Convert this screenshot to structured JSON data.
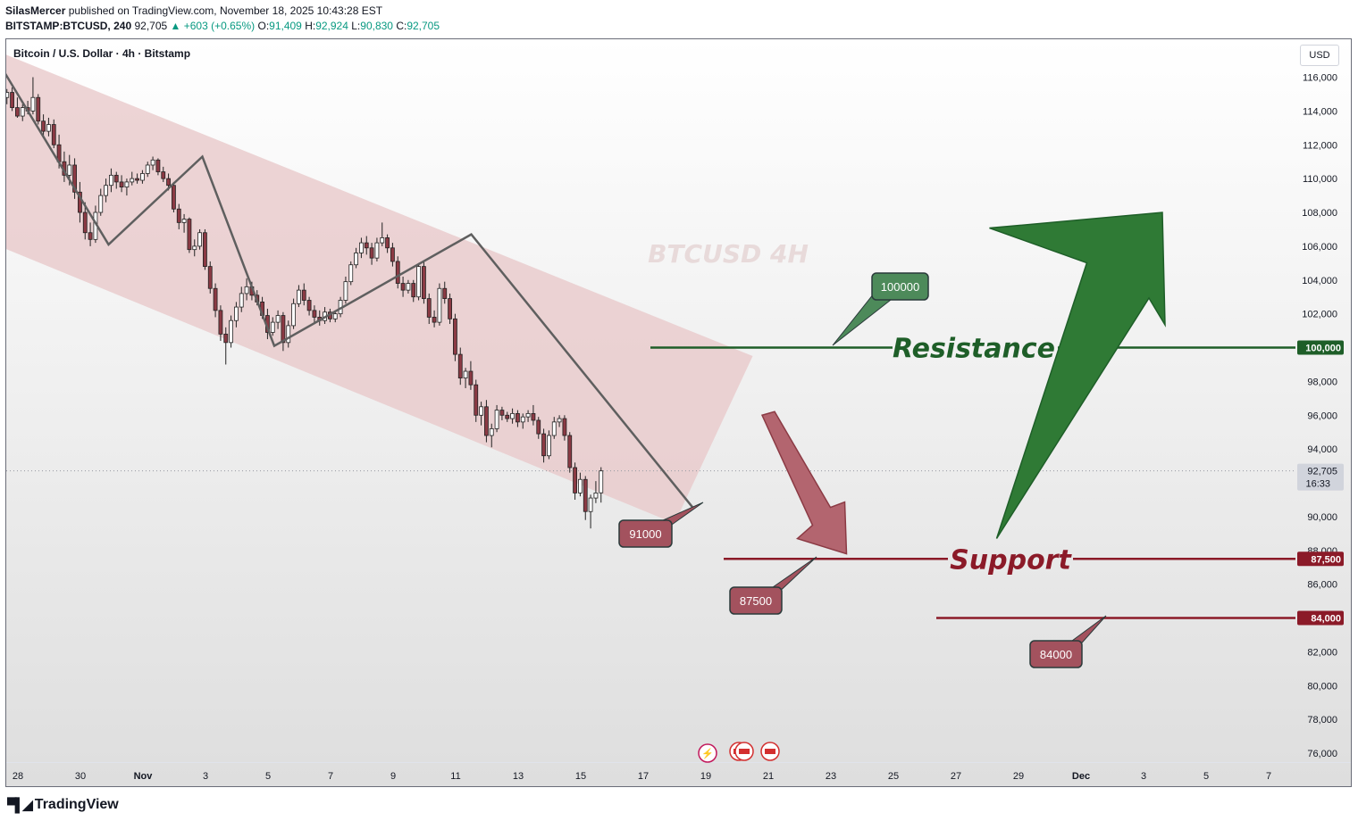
{
  "header": {
    "author": "SilasMercer",
    "published_text": "published on TradingView.com, November 18, 2025 10:43:28 EST",
    "symbol": "BITSTAMP:BTCUSD, 240",
    "last": "92,705",
    "change": "+603 (+0.65%)",
    "ohlc": [
      {
        "k": "O:",
        "v": "91,409"
      },
      {
        "k": "H:",
        "v": "92,924"
      },
      {
        "k": "L:",
        "v": "90,830"
      },
      {
        "k": "C:",
        "v": "92,705"
      }
    ]
  },
  "legend": "Bitcoin / U.S. Dollar · 4h · Bitstamp",
  "currency_button": "USD",
  "watermark": "BTCUSD 4H",
  "footer_brand": "TradingView",
  "colors": {
    "up": "#089981",
    "bull": "#ffffff",
    "bear": "#8b3a44",
    "channel": "#e8c9cb",
    "resistance": "#1e5e28",
    "support": "#8b1a28",
    "label_red": "#a3525e",
    "label_green": "#4d8a5a",
    "arrow_green": "#2f7a35",
    "arrow_red": "#b3656f",
    "zigzag": "#5f5f5f"
  },
  "chart_data": {
    "type": "candlestick",
    "timeframe": "4h",
    "y_axis": {
      "ticks": [
        "116,000",
        "114,000",
        "112,000",
        "110,000",
        "108,000",
        "106,000",
        "104,000",
        "102,000",
        "100,000",
        "98,000",
        "96,000",
        "94,000",
        "92,000",
        "90,000",
        "88,000",
        "86,000",
        "84,000",
        "82,000",
        "80,000",
        "78,000",
        "76,000"
      ],
      "tick_values": [
        116000,
        114000,
        112000,
        110000,
        108000,
        106000,
        104000,
        102000,
        100000,
        98000,
        96000,
        94000,
        92000,
        90000,
        88000,
        86000,
        84000,
        82000,
        80000,
        78000,
        76000
      ],
      "ylim": [
        74400,
        117600
      ]
    },
    "x_axis": {
      "ticks": [
        "28",
        "30",
        "Nov",
        "3",
        "5",
        "7",
        "9",
        "11",
        "13",
        "15",
        "17",
        "19",
        "21",
        "23",
        "25",
        "27",
        "29",
        "Dec",
        "3",
        "5",
        "7"
      ],
      "tick_days": [
        -4,
        -2,
        0,
        2,
        4,
        6,
        8,
        10,
        12,
        14,
        16,
        18,
        20,
        22,
        24,
        26,
        28,
        30,
        32,
        34,
        36
      ]
    },
    "last_price": {
      "label": "92,705",
      "value": 92705,
      "countdown": "16:33"
    },
    "levels": [
      {
        "name": "Resistance",
        "value": 100000,
        "axis_label": "100,000",
        "callout": "100000"
      },
      {
        "name": "Support",
        "value": 87500,
        "axis_label": "87,500",
        "callout": "87500"
      },
      {
        "name": "",
        "value": 84000,
        "axis_label": "84,000",
        "callout": "84000"
      }
    ],
    "callout_low": "91000",
    "swing_points": [
      {
        "day": -4.4,
        "price": 116200
      },
      {
        "day": -1.1,
        "price": 106100
      },
      {
        "day": 1.9,
        "price": 111300
      },
      {
        "day": 4.2,
        "price": 100100
      },
      {
        "day": 10.5,
        "price": 106700
      },
      {
        "day": 17.6,
        "price": 90500
      }
    ],
    "projection": [
      {
        "name": "down",
        "from_day": 19.8,
        "from_price": 96000,
        "to_day": 22.5,
        "to_price": 87800
      },
      {
        "name": "up",
        "from_day": 27.3,
        "from_price": 88700,
        "to_day": 32.6,
        "to_price": 108000
      }
    ],
    "candles": [
      {
        "o": 116000,
        "h": 116500,
        "l": 115000,
        "c": 115800
      },
      {
        "o": 115800,
        "h": 116200,
        "l": 115200,
        "c": 115400
      },
      {
        "o": 115400,
        "h": 115800,
        "l": 114600,
        "c": 114800
      },
      {
        "o": 114800,
        "h": 115300,
        "l": 114400,
        "c": 115100
      },
      {
        "o": 115100,
        "h": 115400,
        "l": 114000,
        "c": 114200
      },
      {
        "o": 114200,
        "h": 114800,
        "l": 113600,
        "c": 113700
      },
      {
        "o": 113700,
        "h": 114400,
        "l": 113400,
        "c": 114200
      },
      {
        "o": 114200,
        "h": 114600,
        "l": 113800,
        "c": 114000
      },
      {
        "o": 114000,
        "h": 116000,
        "l": 113800,
        "c": 114800
      },
      {
        "o": 114800,
        "h": 115000,
        "l": 113200,
        "c": 113400
      },
      {
        "o": 113400,
        "h": 113800,
        "l": 112400,
        "c": 112800
      },
      {
        "o": 112800,
        "h": 113600,
        "l": 112500,
        "c": 113200
      },
      {
        "o": 113200,
        "h": 113500,
        "l": 111800,
        "c": 112000
      },
      {
        "o": 112000,
        "h": 112600,
        "l": 110600,
        "c": 111000
      },
      {
        "o": 111000,
        "h": 111600,
        "l": 109800,
        "c": 110200
      },
      {
        "o": 110200,
        "h": 111400,
        "l": 109600,
        "c": 110800
      },
      {
        "o": 110800,
        "h": 111200,
        "l": 108800,
        "c": 109200
      },
      {
        "o": 109200,
        "h": 109800,
        "l": 107400,
        "c": 108000
      },
      {
        "o": 108000,
        "h": 108600,
        "l": 106400,
        "c": 106800
      },
      {
        "o": 106800,
        "h": 107400,
        "l": 106000,
        "c": 106400
      },
      {
        "o": 106400,
        "h": 108400,
        "l": 106200,
        "c": 108000
      },
      {
        "o": 108000,
        "h": 109400,
        "l": 107800,
        "c": 109000
      },
      {
        "o": 109000,
        "h": 110000,
        "l": 108600,
        "c": 109600
      },
      {
        "o": 109600,
        "h": 110600,
        "l": 109200,
        "c": 110200
      },
      {
        "o": 110200,
        "h": 110400,
        "l": 109400,
        "c": 109800
      },
      {
        "o": 109800,
        "h": 110200,
        "l": 109200,
        "c": 109500
      },
      {
        "o": 109500,
        "h": 110000,
        "l": 109000,
        "c": 109800
      },
      {
        "o": 109800,
        "h": 110400,
        "l": 109600,
        "c": 110000
      },
      {
        "o": 110000,
        "h": 110300,
        "l": 109700,
        "c": 109900
      },
      {
        "o": 109900,
        "h": 110500,
        "l": 109700,
        "c": 110300
      },
      {
        "o": 110300,
        "h": 111000,
        "l": 110100,
        "c": 110800
      },
      {
        "o": 110800,
        "h": 111300,
        "l": 110500,
        "c": 111100
      },
      {
        "o": 111100,
        "h": 111200,
        "l": 110200,
        "c": 110400
      },
      {
        "o": 110400,
        "h": 110700,
        "l": 109800,
        "c": 110000
      },
      {
        "o": 110000,
        "h": 110300,
        "l": 109300,
        "c": 109600
      },
      {
        "o": 109600,
        "h": 109800,
        "l": 108000,
        "c": 108200
      },
      {
        "o": 108200,
        "h": 108500,
        "l": 107000,
        "c": 107400
      },
      {
        "o": 107400,
        "h": 107900,
        "l": 106800,
        "c": 107600
      },
      {
        "o": 107600,
        "h": 107700,
        "l": 105600,
        "c": 105800
      },
      {
        "o": 105800,
        "h": 106400,
        "l": 105400,
        "c": 106000
      },
      {
        "o": 106000,
        "h": 107000,
        "l": 105800,
        "c": 106800
      },
      {
        "o": 106800,
        "h": 107000,
        "l": 104600,
        "c": 104800
      },
      {
        "o": 104800,
        "h": 105100,
        "l": 103200,
        "c": 103500
      },
      {
        "o": 103500,
        "h": 103800,
        "l": 101800,
        "c": 102200
      },
      {
        "o": 102200,
        "h": 102500,
        "l": 100400,
        "c": 100800
      },
      {
        "o": 100800,
        "h": 101200,
        "l": 99000,
        "c": 100300
      },
      {
        "o": 100300,
        "h": 101900,
        "l": 100000,
        "c": 101600
      },
      {
        "o": 101600,
        "h": 102700,
        "l": 101200,
        "c": 102400
      },
      {
        "o": 102400,
        "h": 103600,
        "l": 102100,
        "c": 103200
      },
      {
        "o": 103200,
        "h": 104100,
        "l": 102800,
        "c": 103600
      },
      {
        "o": 103600,
        "h": 103900,
        "l": 102800,
        "c": 103100
      },
      {
        "o": 103100,
        "h": 103400,
        "l": 102500,
        "c": 102700
      },
      {
        "o": 102700,
        "h": 103000,
        "l": 101700,
        "c": 101900
      },
      {
        "o": 101900,
        "h": 102300,
        "l": 100500,
        "c": 100900
      },
      {
        "o": 100900,
        "h": 101800,
        "l": 100700,
        "c": 101500
      },
      {
        "o": 101500,
        "h": 102200,
        "l": 101100,
        "c": 101900
      },
      {
        "o": 101900,
        "h": 102100,
        "l": 99800,
        "c": 100300
      },
      {
        "o": 100300,
        "h": 101600,
        "l": 100000,
        "c": 101300
      },
      {
        "o": 101300,
        "h": 102900,
        "l": 101100,
        "c": 102600
      },
      {
        "o": 102600,
        "h": 103700,
        "l": 102400,
        "c": 103400
      },
      {
        "o": 103400,
        "h": 103800,
        "l": 102500,
        "c": 102800
      },
      {
        "o": 102800,
        "h": 103000,
        "l": 101900,
        "c": 102200
      },
      {
        "o": 102200,
        "h": 102500,
        "l": 101400,
        "c": 101800
      },
      {
        "o": 101800,
        "h": 102200,
        "l": 101300,
        "c": 101600
      },
      {
        "o": 101600,
        "h": 102400,
        "l": 101400,
        "c": 102100
      },
      {
        "o": 102100,
        "h": 102300,
        "l": 101500,
        "c": 101700
      },
      {
        "o": 101700,
        "h": 102200,
        "l": 101500,
        "c": 102000
      },
      {
        "o": 102000,
        "h": 103000,
        "l": 101800,
        "c": 102800
      },
      {
        "o": 102800,
        "h": 104200,
        "l": 102600,
        "c": 103900
      },
      {
        "o": 103900,
        "h": 105100,
        "l": 103700,
        "c": 104900
      },
      {
        "o": 104900,
        "h": 105900,
        "l": 104700,
        "c": 105600
      },
      {
        "o": 105600,
        "h": 106500,
        "l": 105300,
        "c": 106200
      },
      {
        "o": 106200,
        "h": 106600,
        "l": 105500,
        "c": 105900
      },
      {
        "o": 105900,
        "h": 106200,
        "l": 104900,
        "c": 105300
      },
      {
        "o": 105300,
        "h": 106500,
        "l": 105100,
        "c": 106200
      },
      {
        "o": 106200,
        "h": 107400,
        "l": 106000,
        "c": 106500
      },
      {
        "o": 106500,
        "h": 106700,
        "l": 105600,
        "c": 105900
      },
      {
        "o": 105900,
        "h": 106200,
        "l": 104800,
        "c": 105100
      },
      {
        "o": 105100,
        "h": 105400,
        "l": 103500,
        "c": 103800
      },
      {
        "o": 103800,
        "h": 104200,
        "l": 103000,
        "c": 103400
      },
      {
        "o": 103400,
        "h": 104000,
        "l": 103200,
        "c": 103800
      },
      {
        "o": 103800,
        "h": 104000,
        "l": 102700,
        "c": 103000
      },
      {
        "o": 103000,
        "h": 105000,
        "l": 102800,
        "c": 104800
      },
      {
        "o": 104800,
        "h": 105100,
        "l": 102600,
        "c": 102900
      },
      {
        "o": 102900,
        "h": 103200,
        "l": 101400,
        "c": 101800
      },
      {
        "o": 101800,
        "h": 102200,
        "l": 101200,
        "c": 101500
      },
      {
        "o": 101500,
        "h": 103800,
        "l": 101300,
        "c": 103500
      },
      {
        "o": 103500,
        "h": 103900,
        "l": 102600,
        "c": 102900
      },
      {
        "o": 102900,
        "h": 103200,
        "l": 101400,
        "c": 101700
      },
      {
        "o": 101700,
        "h": 102000,
        "l": 99200,
        "c": 99600
      },
      {
        "o": 99600,
        "h": 100000,
        "l": 97800,
        "c": 98200
      },
      {
        "o": 98200,
        "h": 98800,
        "l": 97600,
        "c": 98600
      },
      {
        "o": 98600,
        "h": 99200,
        "l": 97500,
        "c": 97800
      },
      {
        "o": 97800,
        "h": 98100,
        "l": 95600,
        "c": 96000
      },
      {
        "o": 96000,
        "h": 96800,
        "l": 95400,
        "c": 96500
      },
      {
        "o": 96500,
        "h": 96900,
        "l": 94400,
        "c": 94800
      },
      {
        "o": 94800,
        "h": 95500,
        "l": 94100,
        "c": 95200
      },
      {
        "o": 95200,
        "h": 96600,
        "l": 95000,
        "c": 96300
      },
      {
        "o": 96300,
        "h": 96500,
        "l": 95700,
        "c": 96000
      },
      {
        "o": 96000,
        "h": 96200,
        "l": 95600,
        "c": 95800
      },
      {
        "o": 95800,
        "h": 96400,
        "l": 95500,
        "c": 96100
      },
      {
        "o": 96100,
        "h": 96300,
        "l": 95300,
        "c": 95600
      },
      {
        "o": 95600,
        "h": 96100,
        "l": 95200,
        "c": 95900
      },
      {
        "o": 95900,
        "h": 96300,
        "l": 95600,
        "c": 96100
      },
      {
        "o": 96100,
        "h": 96600,
        "l": 95400,
        "c": 95700
      },
      {
        "o": 95700,
        "h": 95900,
        "l": 94600,
        "c": 94900
      },
      {
        "o": 94900,
        "h": 95200,
        "l": 93200,
        "c": 93600
      },
      {
        "o": 93600,
        "h": 95100,
        "l": 93400,
        "c": 94800
      },
      {
        "o": 94800,
        "h": 95900,
        "l": 94600,
        "c": 95600
      },
      {
        "o": 95600,
        "h": 96000,
        "l": 95300,
        "c": 95800
      },
      {
        "o": 95800,
        "h": 96000,
        "l": 94500,
        "c": 94800
      },
      {
        "o": 94800,
        "h": 95000,
        "l": 92600,
        "c": 92900
      },
      {
        "o": 92900,
        "h": 93200,
        "l": 91000,
        "c": 91400
      },
      {
        "o": 91400,
        "h": 92600,
        "l": 91200,
        "c": 92200
      },
      {
        "o": 92200,
        "h": 92400,
        "l": 89800,
        "c": 90300
      },
      {
        "o": 90300,
        "h": 91300,
        "l": 89300,
        "c": 91100
      },
      {
        "o": 91100,
        "h": 92100,
        "l": 90800,
        "c": 91400
      },
      {
        "o": 91409,
        "h": 92924,
        "l": 90830,
        "c": 92705
      }
    ]
  }
}
